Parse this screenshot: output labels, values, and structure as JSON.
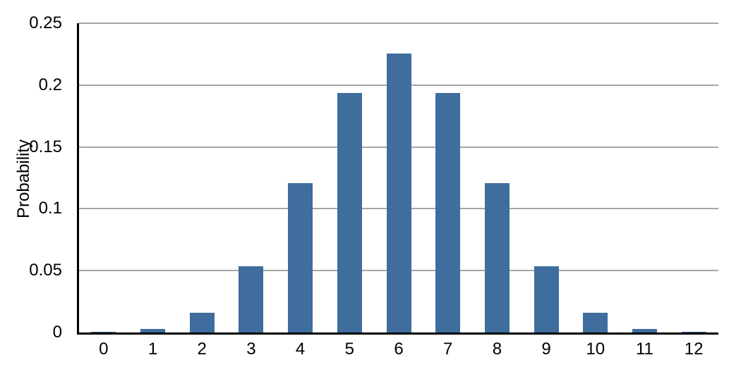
{
  "chart_data": {
    "type": "bar",
    "title": "",
    "xlabel": "",
    "ylabel": "Probability",
    "categories": [
      "0",
      "1",
      "2",
      "3",
      "4",
      "5",
      "6",
      "7",
      "8",
      "9",
      "10",
      "11",
      "12"
    ],
    "values": [
      0.000244,
      0.00293,
      0.016113,
      0.053711,
      0.12085,
      0.193359,
      0.225586,
      0.193359,
      0.12085,
      0.053711,
      0.016113,
      0.00293,
      0.000244
    ],
    "ylim": [
      0,
      0.25
    ],
    "yticks": [
      {
        "value": 0,
        "label": "0"
      },
      {
        "value": 0.05,
        "label": "0.05"
      },
      {
        "value": 0.1,
        "label": "0.1"
      },
      {
        "value": 0.15,
        "label": "0.15"
      },
      {
        "value": 0.2,
        "label": "0.2"
      },
      {
        "value": 0.25,
        "label": "0.25"
      }
    ],
    "grid": true,
    "legend": "none",
    "colors": {
      "bar": "#3E6D9E",
      "gridline": "#A6A6A6",
      "axis": "#000000",
      "text": "#000000",
      "background": "#FFFFFF"
    }
  }
}
